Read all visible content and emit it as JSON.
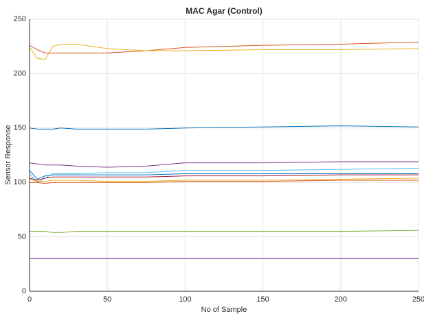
{
  "chart_data": {
    "type": "line",
    "title": "MAC Agar (Control)",
    "x_label": "No of Sample",
    "y_label": "Sensor Response",
    "x": [
      0,
      5,
      10,
      15,
      20,
      30,
      50,
      75,
      100,
      150,
      200,
      250
    ],
    "series": [
      {
        "color": "#D95319",
        "values": [
          226,
          222,
          219,
          219,
          219,
          219,
          219,
          221,
          224,
          226,
          227,
          229
        ]
      },
      {
        "color": "#EDB120",
        "values": [
          224,
          214,
          213,
          225,
          227,
          227,
          223,
          221,
          221,
          222,
          222,
          223
        ]
      },
      {
        "color": "#0072BD",
        "values": [
          150,
          149,
          149,
          149,
          150,
          149,
          149,
          149,
          150,
          151,
          152,
          151
        ]
      },
      {
        "color": "#7E2F8E",
        "values": [
          118,
          117,
          116,
          116,
          116,
          115,
          114,
          115,
          118,
          118,
          119,
          119
        ]
      },
      {
        "color": "#4DBEEE",
        "values": [
          108,
          100,
          104,
          108,
          108,
          108,
          109,
          109,
          111,
          111,
          112,
          113
        ]
      },
      {
        "color": "#0072BD",
        "values": [
          111,
          103,
          106,
          107,
          107,
          107,
          107,
          107,
          108,
          108,
          108,
          108
        ]
      },
      {
        "color": "#A2142F",
        "values": [
          104,
          102,
          104,
          105,
          105,
          105,
          105,
          105,
          106,
          106,
          107,
          107
        ]
      },
      {
        "color": "#EDB120",
        "values": [
          103,
          101,
          101,
          102,
          102,
          102,
          101,
          101,
          102,
          102,
          103,
          104
        ]
      },
      {
        "color": "#D95319",
        "values": [
          100,
          100,
          99,
          100,
          100,
          100,
          100,
          100,
          101,
          101,
          102,
          102
        ]
      },
      {
        "color": "#77AC30",
        "values": [
          55,
          55,
          55,
          54,
          54,
          55,
          55,
          55,
          55,
          55,
          55,
          56
        ]
      },
      {
        "color": "#7E2F8E",
        "values": [
          30,
          30,
          30,
          30,
          30,
          30,
          30,
          30,
          30,
          30,
          30,
          30
        ]
      }
    ],
    "xlim": [
      0,
      250
    ],
    "xticks": [
      0,
      50,
      100,
      150,
      200,
      250
    ],
    "ylim": [
      0,
      250
    ],
    "yticks": [
      0,
      50,
      100,
      150,
      200,
      250
    ],
    "grid": true
  }
}
